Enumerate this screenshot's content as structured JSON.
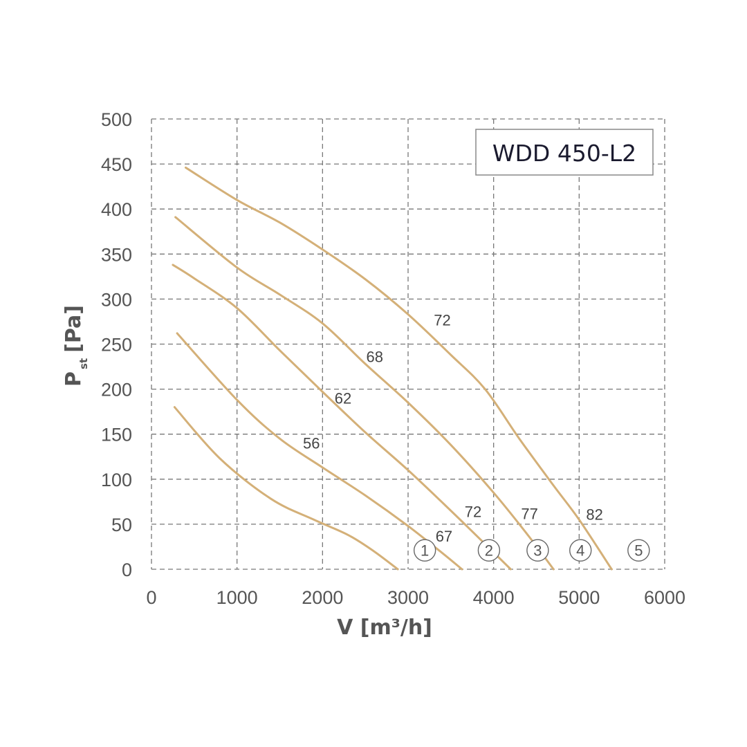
{
  "chart_data": {
    "type": "line",
    "title": "WDD 450-L2",
    "xlabel": "V [m³/h]",
    "ylabel": "P st [Pa]",
    "ylabel_main": "P",
    "ylabel_sub": "st",
    "ylabel_unit": "[Pa]",
    "xlim": [
      0,
      6000
    ],
    "ylim": [
      0,
      500
    ],
    "xticks": [
      0,
      1000,
      2000,
      3000,
      4000,
      5000,
      6000
    ],
    "yticks": [
      0,
      50,
      100,
      150,
      200,
      250,
      300,
      350,
      400,
      450,
      500
    ],
    "grid": true,
    "series": [
      {
        "marker": "1",
        "color": "#d4b078",
        "points": [
          [
            270,
            180
          ],
          [
            800,
            123
          ],
          [
            1400,
            78
          ],
          [
            1900,
            55
          ],
          [
            2300,
            38
          ],
          [
            2600,
            20
          ],
          [
            2880,
            0
          ]
        ],
        "labels": []
      },
      {
        "marker": "2",
        "color": "#d4b078",
        "points": [
          [
            300,
            262
          ],
          [
            1000,
            188
          ],
          [
            1500,
            145
          ],
          [
            2000,
            113
          ],
          [
            2500,
            82
          ],
          [
            3000,
            48
          ],
          [
            3400,
            18
          ],
          [
            3630,
            0
          ]
        ],
        "labels": [
          {
            "text": "56",
            "x": 1870,
            "y": 140
          },
          {
            "text": "67",
            "x": 3420,
            "y": 37
          }
        ]
      },
      {
        "marker": "3",
        "color": "#d4b078",
        "points": [
          [
            250,
            338
          ],
          [
            500,
            323
          ],
          [
            1000,
            290
          ],
          [
            1500,
            243
          ],
          [
            2000,
            197
          ],
          [
            2500,
            152
          ],
          [
            3000,
            110
          ],
          [
            3500,
            65
          ],
          [
            3900,
            28
          ],
          [
            4200,
            0
          ]
        ],
        "labels": [
          {
            "text": "62",
            "x": 2240,
            "y": 190
          },
          {
            "text": "72",
            "x": 3760,
            "y": 64
          }
        ]
      },
      {
        "marker": "4",
        "color": "#d4b078",
        "points": [
          [
            280,
            391
          ],
          [
            1000,
            335
          ],
          [
            1500,
            305
          ],
          [
            2000,
            273
          ],
          [
            2500,
            228
          ],
          [
            3000,
            185
          ],
          [
            3500,
            138
          ],
          [
            4000,
            85
          ],
          [
            4400,
            38
          ],
          [
            4700,
            0
          ]
        ],
        "labels": [
          {
            "text": "68",
            "x": 2610,
            "y": 236
          },
          {
            "text": "77",
            "x": 4420,
            "y": 62
          }
        ]
      },
      {
        "marker": "5",
        "color": "#d4b078",
        "points": [
          [
            400,
            446
          ],
          [
            1000,
            410
          ],
          [
            1500,
            385
          ],
          [
            2000,
            355
          ],
          [
            2500,
            322
          ],
          [
            3000,
            283
          ],
          [
            3500,
            238
          ],
          [
            3900,
            200
          ],
          [
            4300,
            145
          ],
          [
            4700,
            93
          ],
          [
            5000,
            55
          ],
          [
            5380,
            0
          ]
        ],
        "labels": [
          {
            "text": "72",
            "x": 3400,
            "y": 277
          },
          {
            "text": "82",
            "x": 5180,
            "y": 61
          }
        ]
      }
    ]
  }
}
